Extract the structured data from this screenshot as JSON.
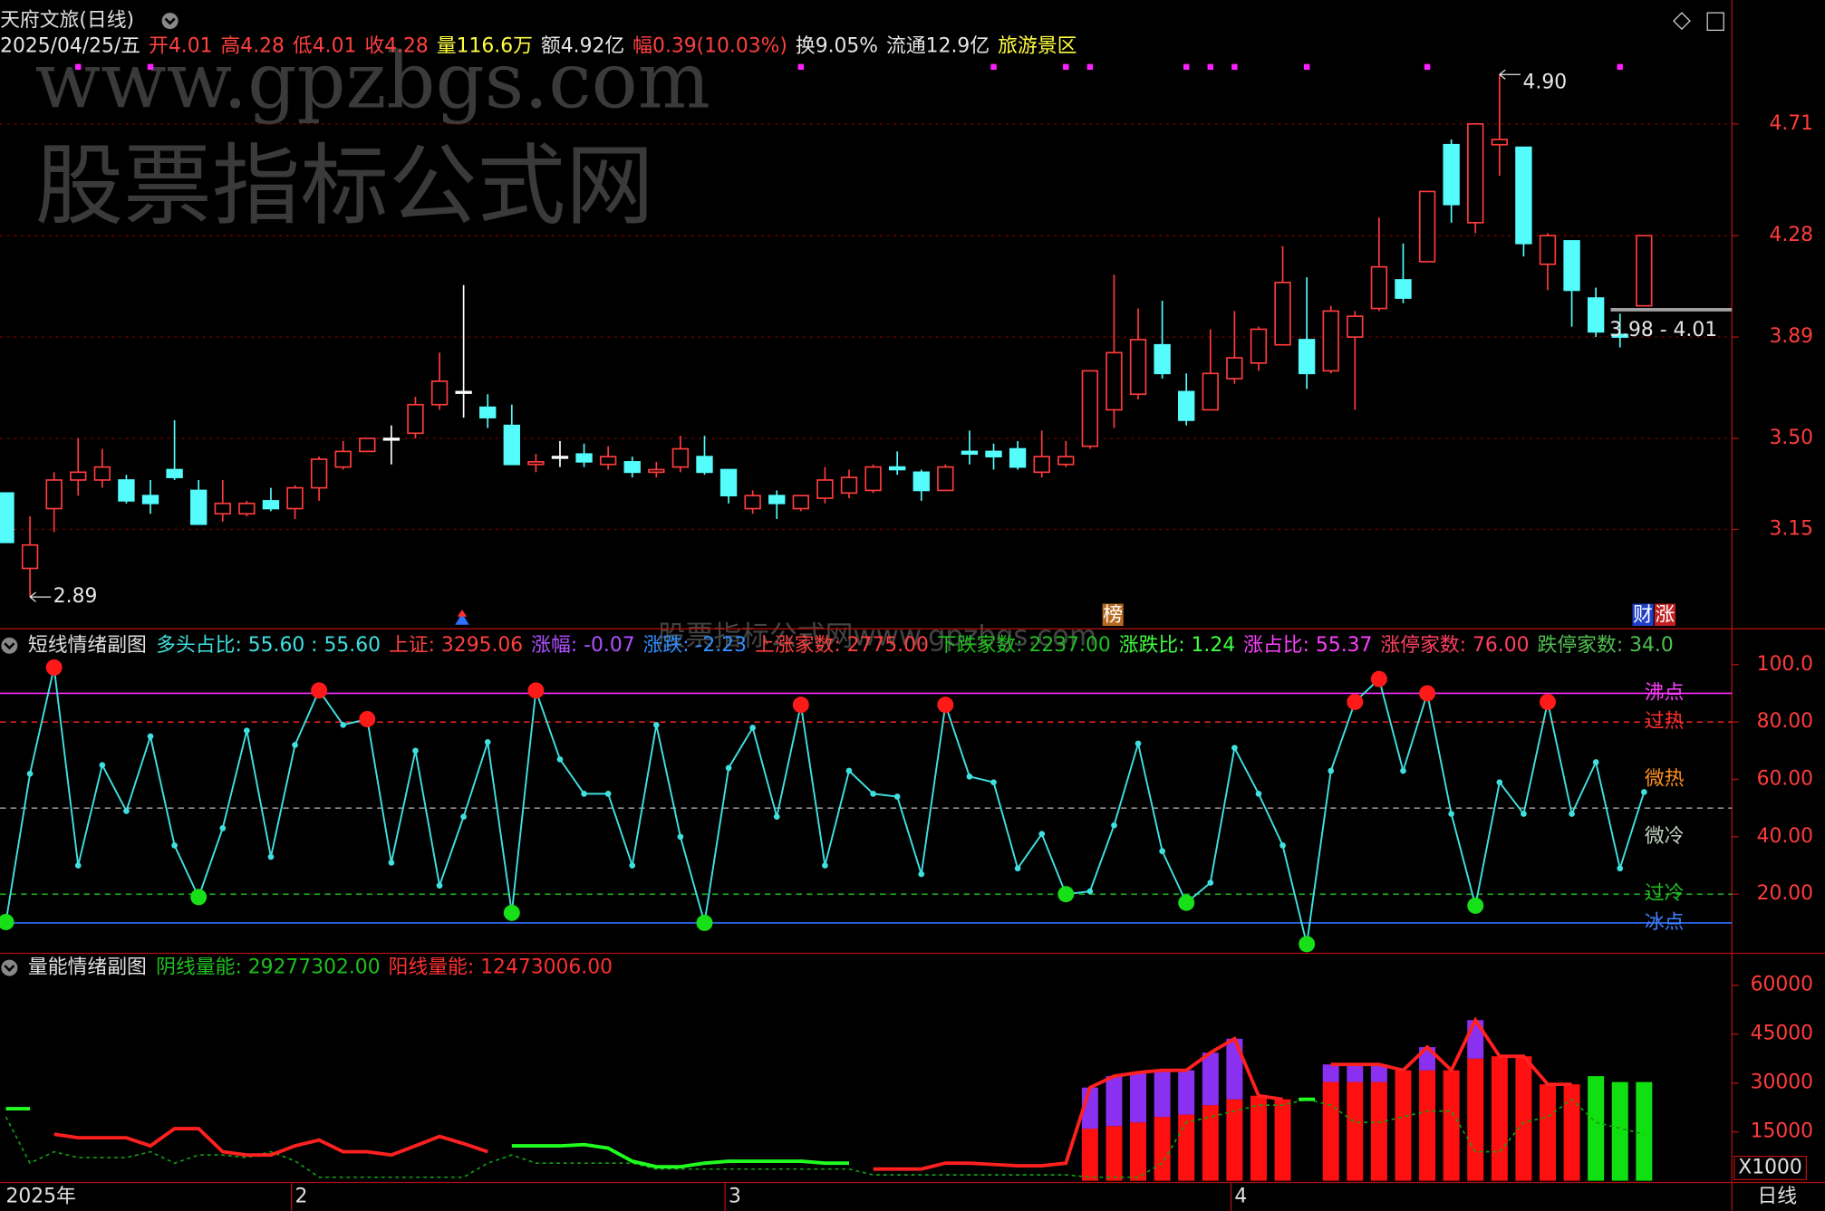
{
  "watermark": [
    "www.gpzbgs.com",
    "股票指标公式网",
    "股票指标公式网www.gpzbgs.com"
  ],
  "chart_data": [
    {
      "type": "candlestick",
      "title": "天府文旅(日线)",
      "period": "日线",
      "info": [
        {
          "text": "2025/04/25/五",
          "color": "#e6e6e6"
        },
        {
          "text": "开4.01",
          "color": "#ff4040"
        },
        {
          "text": "高4.28",
          "color": "#ff4040"
        },
        {
          "text": "低4.01",
          "color": "#ff4040"
        },
        {
          "text": "收4.28",
          "color": "#ff4040"
        },
        {
          "text": "量116.6万",
          "color": "#ffff40"
        },
        {
          "text": "额4.92亿",
          "color": "#e6e6e6"
        },
        {
          "text": "幅0.39(10.03%)",
          "color": "#ff4040"
        },
        {
          "text": "换9.05%",
          "color": "#e6e6e6"
        },
        {
          "text": "流通12.9亿",
          "color": "#e6e6e6"
        },
        {
          "text": "旅游景区",
          "color": "#ffff40"
        }
      ],
      "categories": [
        "2025年",
        null,
        null,
        null,
        null,
        null,
        null,
        null,
        null,
        null,
        null,
        null,
        "2",
        null,
        null,
        null,
        null,
        null,
        null,
        null,
        null,
        null,
        null,
        null,
        null,
        null,
        null,
        null,
        null,
        null,
        "3",
        null,
        null,
        null,
        null,
        null,
        null,
        null,
        null,
        null,
        null,
        null,
        null,
        null,
        null,
        null,
        null,
        null,
        null,
        null,
        null,
        "4",
        null,
        null,
        null,
        null,
        null,
        null,
        null,
        null,
        null,
        null,
        null,
        null,
        null,
        null,
        null,
        null,
        null
      ],
      "open": [
        3.29,
        3.0,
        3.23,
        3.34,
        3.34,
        3.34,
        3.28,
        3.38,
        3.3,
        3.21,
        3.21,
        3.26,
        3.23,
        3.31,
        3.39,
        3.45,
        3.5,
        3.52,
        3.63,
        3.68,
        3.62,
        3.55,
        3.4,
        3.43,
        3.44,
        3.4,
        3.41,
        3.37,
        3.39,
        3.43,
        3.38,
        3.23,
        3.28,
        3.23,
        3.27,
        3.29,
        3.3,
        3.39,
        3.37,
        3.3,
        3.45,
        3.45,
        3.46,
        3.37,
        3.4,
        3.47,
        3.61,
        3.67,
        3.86,
        3.68,
        3.61,
        3.73,
        3.79,
        3.86,
        3.88,
        3.76,
        3.89,
        4.0,
        4.11,
        4.18,
        4.63,
        4.33,
        4.63,
        4.62,
        4.17,
        4.26,
        4.04,
        3.9,
        4.01
      ],
      "high": [
        3.29,
        3.2,
        3.37,
        3.5,
        3.46,
        3.36,
        3.34,
        3.57,
        3.34,
        3.34,
        3.26,
        3.31,
        3.32,
        3.43,
        3.49,
        3.5,
        3.55,
        3.66,
        3.83,
        4.09,
        3.67,
        3.63,
        3.44,
        3.49,
        3.48,
        3.47,
        3.43,
        3.41,
        3.51,
        3.51,
        3.38,
        3.3,
        3.3,
        3.28,
        3.39,
        3.38,
        3.4,
        3.45,
        3.38,
        3.4,
        3.53,
        3.48,
        3.49,
        3.53,
        3.49,
        3.76,
        4.13,
        4.0,
        4.03,
        3.75,
        3.92,
        3.99,
        3.93,
        4.24,
        4.12,
        4.01,
        3.99,
        4.35,
        4.25,
        4.45,
        4.65,
        4.71,
        4.9,
        4.62,
        4.29,
        4.26,
        4.08,
        3.98,
        4.28
      ],
      "low": [
        3.1,
        2.89,
        3.14,
        3.28,
        3.31,
        3.25,
        3.21,
        3.34,
        3.17,
        3.18,
        3.2,
        3.22,
        3.19,
        3.26,
        3.38,
        3.45,
        3.4,
        3.5,
        3.61,
        3.58,
        3.54,
        3.4,
        3.37,
        3.39,
        3.39,
        3.38,
        3.35,
        3.35,
        3.37,
        3.36,
        3.25,
        3.21,
        3.19,
        3.22,
        3.25,
        3.27,
        3.29,
        3.36,
        3.26,
        3.3,
        3.4,
        3.38,
        3.38,
        3.35,
        3.39,
        3.46,
        3.54,
        3.65,
        3.73,
        3.55,
        3.61,
        3.71,
        3.76,
        3.86,
        3.69,
        3.75,
        3.61,
        3.99,
        4.02,
        4.18,
        4.33,
        4.29,
        4.51,
        4.2,
        4.07,
        3.93,
        3.89,
        3.85,
        4.01
      ],
      "close": [
        3.1,
        3.09,
        3.34,
        3.37,
        3.39,
        3.26,
        3.25,
        3.35,
        3.17,
        3.25,
        3.25,
        3.23,
        3.31,
        3.42,
        3.45,
        3.5,
        3.5,
        3.63,
        3.72,
        3.68,
        3.58,
        3.4,
        3.41,
        3.43,
        3.41,
        3.43,
        3.37,
        3.38,
        3.46,
        3.37,
        3.28,
        3.28,
        3.25,
        3.28,
        3.34,
        3.35,
        3.39,
        3.38,
        3.3,
        3.39,
        3.44,
        3.43,
        3.39,
        3.43,
        3.43,
        3.76,
        3.83,
        3.88,
        3.75,
        3.57,
        3.75,
        3.81,
        3.92,
        4.1,
        3.75,
        3.99,
        3.97,
        4.16,
        4.04,
        4.45,
        4.4,
        4.71,
        4.65,
        4.25,
        4.28,
        4.07,
        3.91,
        3.89,
        4.28
      ],
      "up_color": "#ff3c3c",
      "down_color": "#54fcfc",
      "flat_color": "#ffffff",
      "ylim": [
        2.77,
        5.03
      ],
      "yticks": [
        3.15,
        {
          "value": 3.5,
          "label": "3.50"
        },
        3.89,
        4.28,
        4.71
      ],
      "grid": true,
      "signals": [
        3,
        6,
        33,
        41,
        44,
        45,
        49,
        50,
        51,
        54,
        59,
        67
      ],
      "signal_color": "#ff20ff",
      "annotations": [
        {
          "text": "4.90",
          "index": 62,
          "value": 4.9
        },
        {
          "text": "2.89",
          "index": 1,
          "value": 2.89
        },
        {
          "text": "3.98 - 4.01",
          "index": 67,
          "values": [
            3.98,
            4.01
          ]
        }
      ],
      "badges": [
        {
          "text": "榜",
          "index": 46,
          "color": "#b86a20"
        },
        {
          "text": "财",
          "index": 68,
          "color": "#2040c8"
        },
        {
          "text": "涨",
          "index": 68,
          "color": "#c02020"
        }
      ]
    },
    {
      "type": "line",
      "title": "短线情绪副图",
      "info": [
        {
          "text": "多头占比: 55.60 : 55.60",
          "color": "#40e0e0"
        },
        {
          "text": "上证: 3295.06",
          "color": "#ff4040"
        },
        {
          "text": "涨幅: -0.07",
          "color": "#b050ff"
        },
        {
          "text": "涨跌: -2.23",
          "color": "#3090ff"
        },
        {
          "text": "上涨家数: 2775.00",
          "color": "#ff4040"
        },
        {
          "text": "下跌家数: 2237.00",
          "color": "#20c020"
        },
        {
          "text": "涨跌比: 1.24",
          "color": "#40ff40"
        },
        {
          "text": "涨占比: 55.37",
          "color": "#ff40ff"
        },
        {
          "text": "涨停家数: 76.00",
          "color": "#ff4060"
        },
        {
          "text": "跌停家数: 34.0",
          "color": "#50c050"
        }
      ],
      "values": [
        10.3,
        62,
        99,
        30,
        65,
        49,
        75,
        37,
        19,
        43,
        77,
        33,
        72,
        91,
        79,
        81,
        31,
        70,
        23,
        47,
        73,
        13.5,
        91,
        67,
        55,
        55,
        30,
        79,
        40,
        10,
        64,
        78,
        47,
        86,
        30,
        63,
        55,
        54,
        27,
        86,
        61,
        59,
        29,
        41,
        20,
        21,
        44,
        72.5,
        35,
        17,
        24,
        71,
        55,
        37,
        2.6,
        63,
        87,
        95,
        63,
        90,
        48,
        16,
        59,
        48,
        87,
        48,
        66,
        29,
        55.6
      ],
      "color": "#40e0e0",
      "hot_above": 80,
      "hot_color": "#ff1a1a",
      "cold_below": 20,
      "cold_color": "#18e018",
      "ylim": [
        0,
        112.3
      ],
      "yticks": [
        {
          "value": 20,
          "label": "20.00"
        },
        {
          "value": 40,
          "label": "40.00"
        },
        {
          "value": 60,
          "label": "60.00"
        },
        {
          "value": 80,
          "label": "80.00"
        },
        {
          "value": 100,
          "label": "100.0"
        }
      ],
      "grid": false,
      "levels": [
        {
          "value": 90,
          "color": "#ff30ff",
          "dashed": false
        },
        {
          "value": 80,
          "color": "#e02020",
          "dashed": true
        },
        {
          "value": 50,
          "color": "#909090",
          "dashed": true
        },
        {
          "value": 20,
          "color": "#20a020",
          "dashed": true
        },
        {
          "value": 10,
          "color": "#3070ff",
          "dashed": false
        }
      ],
      "level_labels": [
        {
          "label": "沸点",
          "value": 90,
          "color": "#ff40ff"
        },
        {
          "label": "过热",
          "value": 80,
          "color": "#ff3030"
        },
        {
          "label": "微热",
          "value": 60,
          "color": "#ff9020"
        },
        {
          "label": "微冷",
          "value": 40,
          "color": "#c0d0c0"
        },
        {
          "label": "过冷",
          "value": 20,
          "color": "#20c020"
        },
        {
          "label": "冰点",
          "value": 10,
          "color": "#4080ff"
        }
      ]
    },
    {
      "type": "volume",
      "title": "量能情绪副图",
      "unit_label": "X1000",
      "info": [
        {
          "text": "阴线量能: 29277302.00",
          "color": "#20c020"
        },
        {
          "text": "阳线量能: 12473006.00",
          "color": "#ff3030"
        }
      ],
      "ylim": [
        0,
        68900
      ],
      "yticks": [
        15000,
        30000,
        45000,
        60000
      ],
      "grid": false,
      "series": [
        {
          "kind": "bar",
          "color": "#ff1010",
          "values": [
            null,
            null,
            null,
            null,
            null,
            null,
            null,
            null,
            null,
            null,
            null,
            null,
            null,
            null,
            null,
            null,
            null,
            null,
            null,
            null,
            null,
            null,
            null,
            null,
            null,
            null,
            null,
            null,
            null,
            null,
            null,
            null,
            null,
            null,
            null,
            null,
            null,
            null,
            null,
            null,
            null,
            null,
            null,
            null,
            null,
            16000,
            16800,
            17900,
            19600,
            20300,
            23200,
            25000,
            26100,
            25000,
            null,
            30300,
            30300,
            30300,
            33900,
            33900,
            33900,
            37500,
            38200,
            38200,
            29600,
            29600,
            null,
            null,
            null
          ]
        },
        {
          "kind": "bar",
          "color": "#8a30f0",
          "stack": true,
          "values": [
            null,
            null,
            null,
            null,
            null,
            null,
            null,
            null,
            null,
            null,
            null,
            null,
            null,
            null,
            null,
            null,
            null,
            null,
            null,
            null,
            null,
            null,
            null,
            null,
            null,
            null,
            null,
            null,
            null,
            null,
            null,
            null,
            null,
            null,
            null,
            null,
            null,
            null,
            null,
            null,
            null,
            null,
            null,
            null,
            null,
            12600,
            15300,
            15300,
            14300,
            13600,
            16100,
            18600,
            null,
            null,
            null,
            5400,
            5400,
            5400,
            null,
            7100,
            null,
            11800,
            null,
            null,
            null,
            null,
            null,
            null,
            null
          ]
        },
        {
          "kind": "bar",
          "color": "#10e010",
          "values": [
            null,
            null,
            null,
            null,
            null,
            null,
            null,
            null,
            null,
            null,
            null,
            null,
            null,
            null,
            null,
            null,
            null,
            null,
            null,
            null,
            null,
            null,
            null,
            null,
            null,
            null,
            null,
            null,
            null,
            null,
            null,
            null,
            null,
            null,
            null,
            null,
            null,
            null,
            null,
            null,
            null,
            null,
            null,
            null,
            null,
            null,
            null,
            null,
            null,
            null,
            null,
            null,
            null,
            null,
            null,
            null,
            null,
            null,
            null,
            null,
            null,
            null,
            null,
            null,
            null,
            null,
            32100,
            30300,
            30300
          ]
        },
        {
          "kind": "line",
          "color": "#10a010",
          "dashed": true,
          "values": [
            19600,
            5400,
            8900,
            7100,
            7100,
            7100,
            8900,
            5400,
            7900,
            7900,
            7100,
            8900,
            6100,
            1100,
            1100,
            1100,
            1100,
            1100,
            1100,
            1100,
            5400,
            7900,
            5400,
            5400,
            5400,
            5400,
            5400,
            3600,
            3600,
            3600,
            3600,
            3600,
            3600,
            3600,
            3600,
            3600,
            1800,
            1800,
            1800,
            1800,
            1800,
            1800,
            1800,
            1800,
            1800,
            1100,
            1100,
            1100,
            5400,
            17900,
            19600,
            21400,
            23200,
            23200,
            25000,
            23200,
            17900,
            17900,
            19600,
            21400,
            21400,
            8900,
            8900,
            17900,
            19600,
            25000,
            17900,
            16100,
            14300
          ]
        },
        {
          "kind": "line",
          "color": "#ff2020",
          "values": [
            null,
            null,
            14300,
            13200,
            13200,
            13200,
            10700,
            16000,
            16000,
            8900,
            7900,
            7900,
            10700,
            12500,
            8900,
            8900,
            7900,
            10700,
            13600,
            11400,
            8900,
            null,
            null,
            null,
            null,
            null,
            null,
            null,
            null,
            null,
            null,
            null,
            null,
            null,
            null,
            null,
            3600,
            3600,
            3600,
            5400,
            5400,
            5000,
            4600,
            4600,
            5400,
            28600,
            32100,
            33200,
            33900,
            33900,
            39300,
            43600,
            26100,
            25000,
            null,
            35700,
            35700,
            35700,
            33900,
            41000,
            33900,
            49300,
            38200,
            38200,
            29600,
            29600,
            null,
            null,
            null
          ]
        },
        {
          "kind": "line",
          "color": "#20ff20",
          "values": [
            22100,
            22100,
            null,
            null,
            null,
            null,
            null,
            null,
            null,
            null,
            null,
            null,
            null,
            null,
            null,
            null,
            null,
            null,
            null,
            null,
            null,
            10700,
            10700,
            10700,
            11100,
            10000,
            6000,
            4300,
            4300,
            5400,
            6000,
            6000,
            6000,
            6000,
            5400,
            5400,
            null,
            null,
            null,
            null,
            null,
            null,
            null,
            null,
            null,
            null,
            null,
            null,
            null,
            null,
            null,
            null,
            null,
            null,
            25000,
            null,
            null,
            null,
            null,
            null,
            null,
            null,
            null,
            null,
            null,
            null,
            null,
            null,
            null
          ]
        }
      ]
    }
  ]
}
